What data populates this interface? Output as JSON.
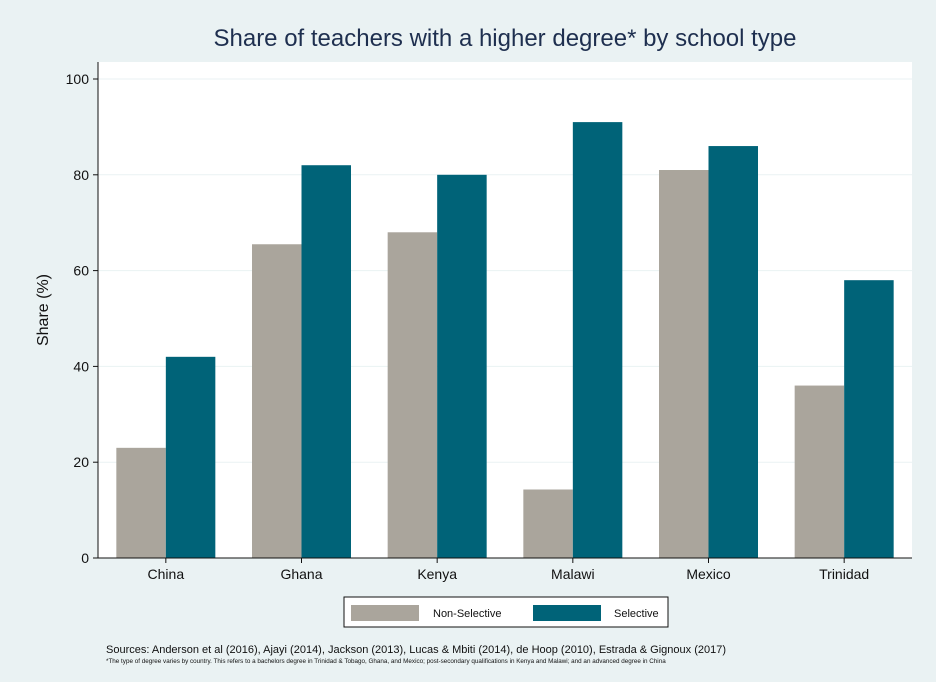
{
  "chart_data": {
    "type": "bar",
    "title": "Share of teachers with a higher degree* by school type",
    "xlabel": "",
    "ylabel": "Share (%)",
    "ylim": [
      0,
      100
    ],
    "yticks": [
      "0",
      "20",
      "40",
      "60",
      "80",
      "100"
    ],
    "grid": true,
    "legend_position": "bottom",
    "categories": [
      "China",
      "Ghana",
      "Kenya",
      "Malawi",
      "Mexico",
      "Trinidad"
    ],
    "series": [
      {
        "name": "Non-Selective",
        "color": "#aaa59c",
        "values": [
          23,
          65.5,
          68,
          14.3,
          81,
          36
        ]
      },
      {
        "name": "Selective",
        "color": "#006378",
        "values": [
          42,
          82,
          80,
          91,
          86,
          58
        ]
      }
    ]
  },
  "sources": "Sources: Anderson et al (2016), Ajayi (2014), Jackson (2013), Lucas & Mbiti (2014), de Hoop (2010), Estrada & Gignoux (2017)",
  "note": "*The type of degree varies by country. This refers to a bachelors degree in Trinidad & Tobago, Ghana, and Mexico; post-secondary qualifications in Kenya and Malawi; and an advanced degree in China"
}
